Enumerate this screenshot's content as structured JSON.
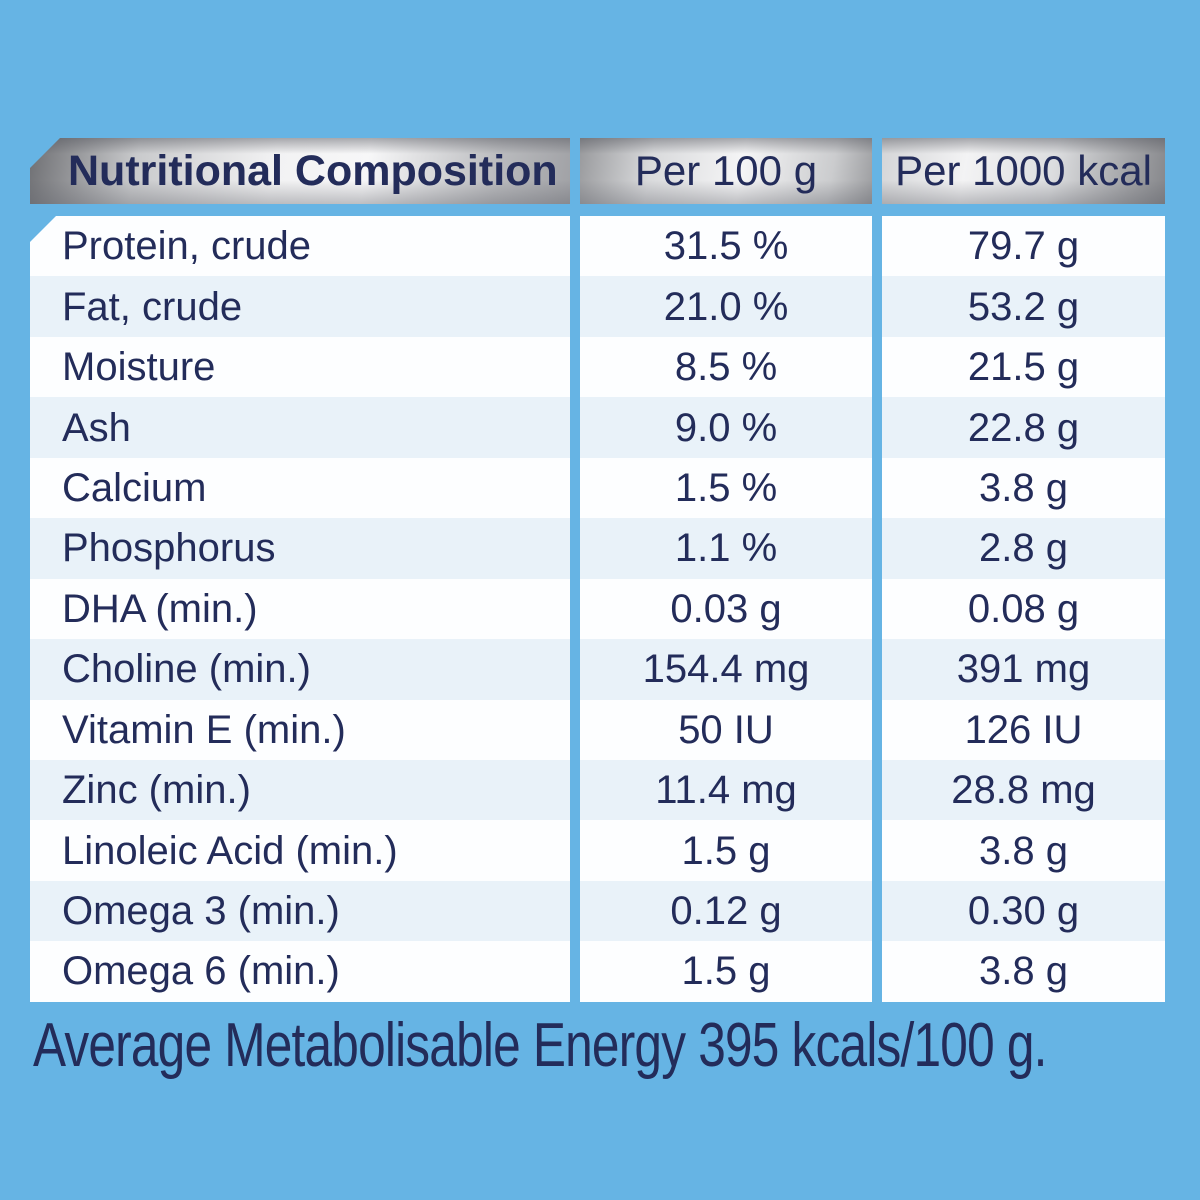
{
  "table": {
    "headers": [
      "Nutritional Composition",
      "Per 100 g",
      "Per 1000 kcal"
    ],
    "rows": [
      {
        "label": "Protein, crude",
        "per_100g": "31.5 %",
        "per_1000kcal": "79.7 g"
      },
      {
        "label": "Fat, crude",
        "per_100g": "21.0 %",
        "per_1000kcal": "53.2 g"
      },
      {
        "label": "Moisture",
        "per_100g": "8.5 %",
        "per_1000kcal": "21.5 g"
      },
      {
        "label": "Ash",
        "per_100g": "9.0 %",
        "per_1000kcal": "22.8 g"
      },
      {
        "label": "Calcium",
        "per_100g": "1.5 %",
        "per_1000kcal": "3.8 g"
      },
      {
        "label": "Phosphorus",
        "per_100g": "1.1 %",
        "per_1000kcal": "2.8 g"
      },
      {
        "label": "DHA (min.)",
        "per_100g": "0.03 g",
        "per_1000kcal": "0.08 g"
      },
      {
        "label": "Choline (min.)",
        "per_100g": "154.4 mg",
        "per_1000kcal": "391 mg"
      },
      {
        "label": "Vitamin E (min.)",
        "per_100g": "50 IU",
        "per_1000kcal": "126 IU"
      },
      {
        "label": "Zinc (min.)",
        "per_100g": "11.4 mg",
        "per_1000kcal": "28.8 mg"
      },
      {
        "label": "Linoleic Acid (min.)",
        "per_100g": "1.5 g",
        "per_1000kcal": "3.8 g"
      },
      {
        "label": "Omega 3 (min.)",
        "per_100g": "0.12 g",
        "per_1000kcal": "0.30 g"
      },
      {
        "label": "Omega 6 (min.)",
        "per_100g": "1.5 g",
        "per_1000kcal": "3.8 g"
      }
    ]
  },
  "footer": {
    "text": "Average Metabolisable Energy 395 kcals/100 g."
  },
  "colors": {
    "bg": "#66b4e4",
    "ink": "#232c5a",
    "row-a": "#fdfeff",
    "row-b": "#e9f2f9",
    "silver-light": "#f5f5f6",
    "silver-dark": "#85868a"
  }
}
